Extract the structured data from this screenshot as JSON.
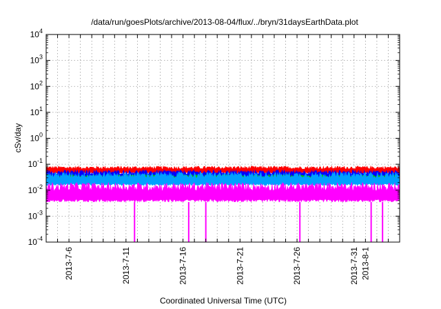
{
  "chart_data": {
    "type": "line",
    "title": "/data/run/goesPlots/archive/2013-08-04/flux/../bryn/31daysEarthData.plot",
    "xlabel": "Coordinated Universal Time (UTC)",
    "ylabel": "cSv/day",
    "yscale": "log",
    "ylim": [
      0.0001,
      10000
    ],
    "xlim": [
      "2013-07-04",
      "2013-08-04"
    ],
    "grid": true,
    "y_ticks": [
      {
        "base": "10",
        "exp": "-4",
        "value": 0.0001
      },
      {
        "base": "10",
        "exp": "-3",
        "value": 0.001
      },
      {
        "base": "10",
        "exp": "-2",
        "value": 0.01
      },
      {
        "base": "10",
        "exp": "-1",
        "value": 0.1
      },
      {
        "base": "10",
        "exp": "0",
        "value": 1
      },
      {
        "base": "10",
        "exp": "1",
        "value": 10
      },
      {
        "base": "10",
        "exp": "2",
        "value": 100
      },
      {
        "base": "10",
        "exp": "3",
        "value": 1000
      },
      {
        "base": "10",
        "exp": "4",
        "value": 10000
      }
    ],
    "x_ticks": [
      {
        "label": "2013-7-6",
        "date": "2013-07-06"
      },
      {
        "label": "2013-7-11",
        "date": "2013-07-11"
      },
      {
        "label": "2013-7-16",
        "date": "2013-07-16"
      },
      {
        "label": "2013-7-21",
        "date": "2013-07-21"
      },
      {
        "label": "2013-7-26",
        "date": "2013-07-26"
      },
      {
        "label": "2013-7-31",
        "date": "2013-07-31"
      },
      {
        "label": "2013-8-1",
        "date": "2013-08-01"
      }
    ],
    "series": [
      {
        "color": "#ff0000",
        "typical_range": [
          0.045,
          0.085
        ]
      },
      {
        "color": "#0000ff",
        "typical_range": [
          0.025,
          0.06
        ]
      },
      {
        "color": "#00cc00",
        "typical_range": [
          0.02,
          0.04
        ]
      },
      {
        "color": "#00a0ff",
        "typical_range": [
          0.015,
          0.05
        ]
      },
      {
        "color": "#ff00ff",
        "typical_range": [
          0.0035,
          0.02
        ]
      }
    ],
    "dropouts": [
      "2013-07-11T18:00",
      "2013-07-16T12:00",
      "2013-07-18T00:00",
      "2013-07-26T06:00",
      "2013-08-01T12:00",
      "2013-08-02T12:00"
    ]
  }
}
